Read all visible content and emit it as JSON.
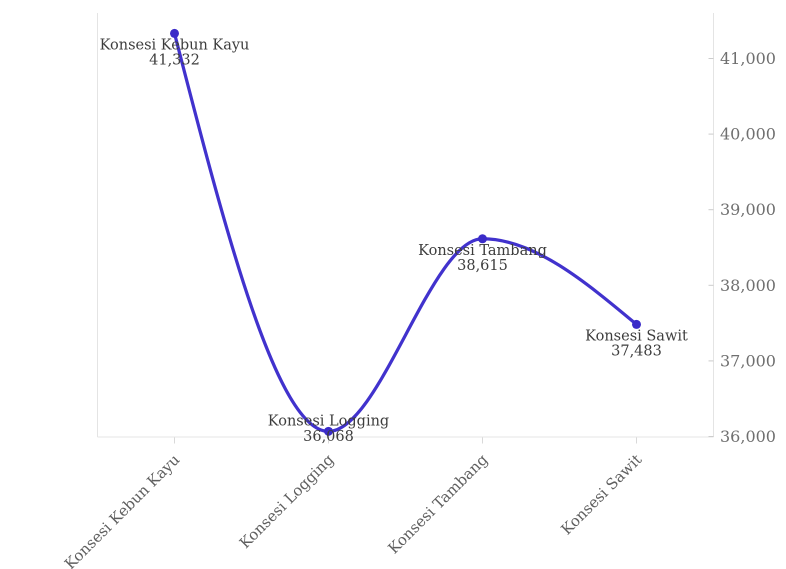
{
  "chart_data": {
    "type": "line",
    "title": "",
    "xlabel": "",
    "ylabel": "",
    "categories": [
      "Konsesi Kebun Kayu",
      "Konsesi Logging",
      "Konsesi Tambang",
      "Konsesi Sawit"
    ],
    "values": [
      41332,
      36068,
      38615,
      37483
    ],
    "series": [
      {
        "name": "Konsesi",
        "values": [
          41332,
          36068,
          38615,
          37483
        ]
      }
    ],
    "point_labels": [
      {
        "name": "Konsesi Kebun Kayu",
        "value": "41,332",
        "position": "below"
      },
      {
        "name": "Konsesi Logging",
        "value": "36,068",
        "position": "overlap"
      },
      {
        "name": "Konsesi Tambang",
        "value": "38,615",
        "position": "below"
      },
      {
        "name": "Konsesi Sawit",
        "value": "37,483",
        "position": "below"
      }
    ],
    "y_axis": {
      "side": "right",
      "tick_values": [
        36000,
        37000,
        38000,
        39000,
        40000,
        41000
      ],
      "tick_labels": [
        "36,000",
        "37,000",
        "38,000",
        "39,000",
        "40,000",
        "41,000"
      ]
    },
    "ylim": [
      36000,
      41000
    ],
    "grid": false,
    "legend": false,
    "colors": {
      "line": "#4132cd",
      "marker": "#3a2bc8",
      "data_label_text": "#3d3d3d",
      "axis_tick_text": "#6f6f6f",
      "x_label_text": "#5f5f5f",
      "axis_line": "#e4e4e4",
      "tick_mark": "#cccccc",
      "background": "#ffffff"
    }
  }
}
